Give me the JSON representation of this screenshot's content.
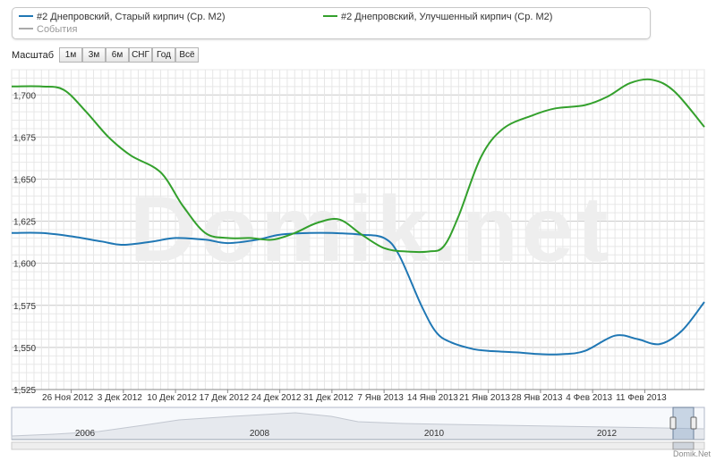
{
  "legend": {
    "series1": "#2 Днепровский, Старый кирпич (Ср. М2)",
    "series2": "#2 Днепровский, Улучшенный кирпич (Ср. М2)",
    "events": "События"
  },
  "scale": {
    "label": "Масштаб",
    "buttons": [
      "1м",
      "3м",
      "6м",
      "СНГ",
      "Год",
      "Всё"
    ]
  },
  "watermark": "Domik.net",
  "footer": "Domik.Net",
  "colors": {
    "series1": "#1f77b4",
    "series2": "#33a02c",
    "events": "#aaaaaa"
  },
  "chart_data": {
    "type": "line",
    "x_unit": "date",
    "x_ticks": [
      "26 Ноя 2012",
      "3 Дек 2012",
      "10 Дек 2012",
      "17 Дек 2012",
      "24 Дек 2012",
      "31 Дек 2012",
      "7 Янв 2013",
      "14 Янв 2013",
      "21 Янв 2013",
      "28 Янв 2013",
      "4 Фев 2013",
      "11 Фев 2013"
    ],
    "y_ticks": [
      "1,525",
      "1,550",
      "1,575",
      "1,600",
      "1,625",
      "1,650",
      "1,675",
      "1,700"
    ],
    "ylim": [
      1525,
      1715
    ],
    "xlim": [
      "2012-11-18",
      "2013-02-19"
    ],
    "series": [
      {
        "name": "#2 Днепровский, Старый кирпич (Ср. М2)",
        "color": "#1f77b4",
        "x": [
          "2012-11-18",
          "2012-11-22",
          "2012-11-26",
          "2012-11-30",
          "2012-12-03",
          "2012-12-07",
          "2012-12-10",
          "2012-12-14",
          "2012-12-17",
          "2012-12-21",
          "2012-12-24",
          "2012-12-28",
          "2012-12-31",
          "2013-01-04",
          "2013-01-07",
          "2013-01-09",
          "2013-01-12",
          "2013-01-14",
          "2013-01-16",
          "2013-01-19",
          "2013-01-21",
          "2013-01-25",
          "2013-01-28",
          "2013-01-31",
          "2013-02-03",
          "2013-02-07",
          "2013-02-10",
          "2013-02-13",
          "2013-02-16",
          "2013-02-19"
        ],
        "values": [
          1618,
          1618,
          1616,
          1613,
          1611,
          1613,
          1615,
          1614,
          1612,
          1614,
          1617,
          1618,
          1618,
          1617,
          1615,
          1605,
          1575,
          1559,
          1553,
          1549,
          1548,
          1547,
          1546,
          1546,
          1548,
          1557,
          1555,
          1552,
          1560,
          1577
        ]
      },
      {
        "name": "#2 Днепровский, Улучшенный кирпич (Ср. М2)",
        "color": "#33a02c",
        "x": [
          "2012-11-18",
          "2012-11-22",
          "2012-11-25",
          "2012-11-28",
          "2012-12-01",
          "2012-12-04",
          "2012-12-08",
          "2012-12-11",
          "2012-12-14",
          "2012-12-17",
          "2012-12-20",
          "2012-12-23",
          "2012-12-26",
          "2012-12-29",
          "2013-01-01",
          "2013-01-04",
          "2013-01-07",
          "2013-01-10",
          "2013-01-13",
          "2013-01-15",
          "2013-01-17",
          "2013-01-20",
          "2013-01-23",
          "2013-01-27",
          "2013-01-30",
          "2013-02-03",
          "2013-02-06",
          "2013-02-09",
          "2013-02-12",
          "2013-02-15",
          "2013-02-19"
        ],
        "values": [
          1705,
          1705,
          1703,
          1690,
          1675,
          1664,
          1654,
          1634,
          1618,
          1615,
          1615,
          1614,
          1618,
          1624,
          1626,
          1617,
          1609,
          1607,
          1607,
          1610,
          1628,
          1663,
          1680,
          1688,
          1692,
          1694,
          1699,
          1707,
          1709,
          1702,
          1681
        ]
      }
    ],
    "navigator": {
      "ticks": [
        "2006",
        "2008",
        "2010",
        "2012"
      ]
    }
  }
}
